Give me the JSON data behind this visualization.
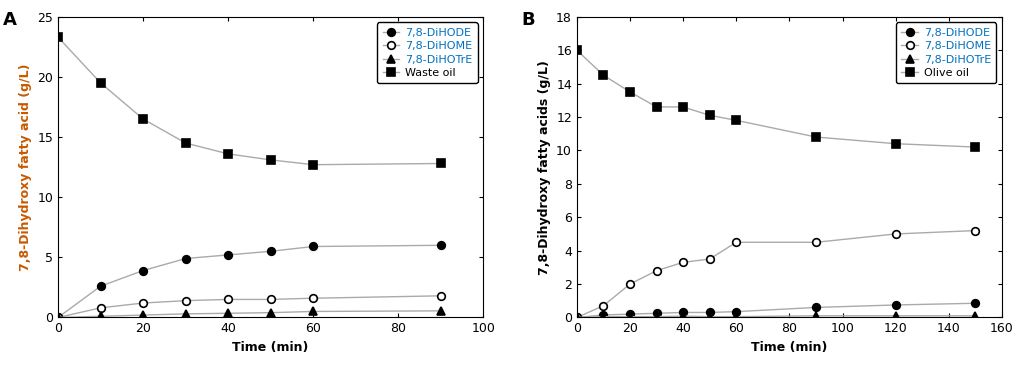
{
  "panel_A": {
    "title": "A",
    "xlabel": "Time (min)",
    "ylabel": "7,8-Dihydroxy fatty acid (g/L)",
    "xlim": [
      0,
      100
    ],
    "ylim": [
      0,
      25
    ],
    "yticks": [
      0,
      5,
      10,
      15,
      20,
      25
    ],
    "xticks": [
      0,
      20,
      40,
      60,
      80,
      100
    ],
    "series": [
      {
        "key": "DiHODE",
        "x": [
          0,
          10,
          20,
          30,
          40,
          50,
          60,
          90
        ],
        "y": [
          0,
          2.6,
          3.9,
          4.9,
          5.2,
          5.5,
          5.9,
          6.0
        ],
        "marker": "o",
        "fillstyle": "full",
        "label": "7,8-DiHODE"
      },
      {
        "key": "DiHOME",
        "x": [
          0,
          10,
          20,
          30,
          40,
          50,
          60,
          90
        ],
        "y": [
          0,
          0.8,
          1.2,
          1.4,
          1.5,
          1.5,
          1.6,
          1.8
        ],
        "marker": "o",
        "fillstyle": "none",
        "label": "7,8-DiHOME"
      },
      {
        "key": "DiHOTrE",
        "x": [
          0,
          10,
          20,
          30,
          40,
          50,
          60,
          90
        ],
        "y": [
          0,
          0.1,
          0.2,
          0.3,
          0.35,
          0.4,
          0.5,
          0.55
        ],
        "marker": "^",
        "fillstyle": "full",
        "label": "7,8-DiHOTrE"
      },
      {
        "key": "WasteOil",
        "x": [
          0,
          10,
          20,
          30,
          40,
          50,
          60,
          90
        ],
        "y": [
          23.3,
          19.5,
          16.5,
          14.5,
          13.6,
          13.1,
          12.7,
          12.8
        ],
        "marker": "s",
        "fillstyle": "full",
        "label": "Waste oil"
      }
    ]
  },
  "panel_B": {
    "title": "B",
    "xlabel": "Time (min)",
    "ylabel": "7,8-Dihydroxy fatty acids (g/L)",
    "xlim": [
      0,
      160
    ],
    "ylim": [
      0,
      18
    ],
    "yticks": [
      0,
      2,
      4,
      6,
      8,
      10,
      12,
      14,
      16,
      18
    ],
    "xticks": [
      0,
      20,
      40,
      60,
      80,
      100,
      120,
      140,
      160
    ],
    "series": [
      {
        "key": "DiHODE",
        "x": [
          0,
          10,
          20,
          30,
          40,
          50,
          60,
          90,
          120,
          150
        ],
        "y": [
          0,
          0.15,
          0.2,
          0.25,
          0.3,
          0.3,
          0.35,
          0.6,
          0.75,
          0.85
        ],
        "marker": "o",
        "fillstyle": "full",
        "label": "7,8-DiHODE"
      },
      {
        "key": "DiHOME",
        "x": [
          0,
          10,
          20,
          30,
          40,
          50,
          60,
          90,
          120,
          150
        ],
        "y": [
          0,
          0.7,
          2.0,
          2.8,
          3.3,
          3.5,
          4.5,
          4.5,
          5.0,
          5.2
        ],
        "marker": "o",
        "fillstyle": "none",
        "label": "7,8-DiHOME"
      },
      {
        "key": "DiHOTrE",
        "x": [
          0,
          10,
          20,
          30,
          40,
          50,
          60,
          90,
          120,
          150
        ],
        "y": [
          0,
          0.05,
          0.05,
          0.05,
          0.08,
          0.05,
          0.05,
          0.1,
          0.1,
          0.1
        ],
        "marker": "^",
        "fillstyle": "full",
        "label": "7,8-DiHOTrE"
      },
      {
        "key": "OliveOil",
        "x": [
          0,
          10,
          20,
          30,
          40,
          50,
          60,
          90,
          120,
          150
        ],
        "y": [
          16.0,
          14.5,
          13.5,
          12.6,
          12.6,
          12.1,
          11.8,
          10.8,
          10.4,
          10.2
        ],
        "marker": "s",
        "fillstyle": "full",
        "label": "Olive oil"
      }
    ]
  },
  "line_color": "#aaaaaa",
  "marker_color": "#000000",
  "ylabel_color_A": "#c85a00",
  "ylabel_color_B": "#000000",
  "legend_label_colors": [
    "#0070c0",
    "#0070c0",
    "#0070c0",
    "#000000"
  ],
  "legend_label_colors_B": [
    "#0070c0",
    "#0070c0",
    "#0070c0",
    "#000000"
  ]
}
